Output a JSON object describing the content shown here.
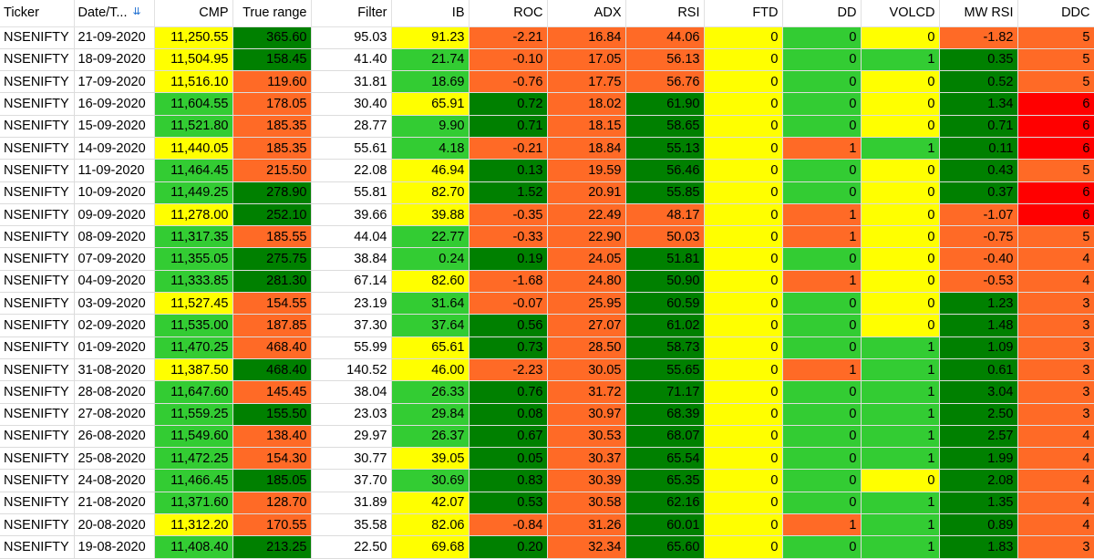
{
  "colors": {
    "yellow": "#ffff00",
    "light_green": "#33cc33",
    "dark_green": "#008000",
    "orange": "#ff6a26",
    "red": "#ff0000",
    "white": "#ffffff",
    "light_gray": "#f3f3f3"
  },
  "columns": [
    {
      "key": "ticker",
      "label": "Ticker",
      "align": "left"
    },
    {
      "key": "date",
      "label": "Date/T...",
      "align": "left",
      "sort_icon": "sort-desc-icon"
    },
    {
      "key": "cmp",
      "label": "CMP"
    },
    {
      "key": "tr",
      "label": "True range"
    },
    {
      "key": "filter",
      "label": "Filter"
    },
    {
      "key": "ib",
      "label": "IB"
    },
    {
      "key": "roc",
      "label": "ROC"
    },
    {
      "key": "adx",
      "label": "ADX"
    },
    {
      "key": "rsi",
      "label": "RSI"
    },
    {
      "key": "ftd",
      "label": "FTD"
    },
    {
      "key": "dd",
      "label": "DD"
    },
    {
      "key": "volcd",
      "label": "VOLCD"
    },
    {
      "key": "mwrsi",
      "label": "MW RSI"
    },
    {
      "key": "ddc",
      "label": "DDC"
    }
  ],
  "rows": [
    [
      "NSENIFTY",
      "21-09-2020",
      "11,250.55",
      "365.60",
      "95.03",
      "91.23",
      "-2.21",
      "16.84",
      "44.06",
      "0",
      "0",
      "0",
      "-1.82",
      "5"
    ],
    [
      "NSENIFTY",
      "18-09-2020",
      "11,504.95",
      "158.45",
      "41.40",
      "21.74",
      "-0.10",
      "17.05",
      "56.13",
      "0",
      "0",
      "1",
      "0.35",
      "5"
    ],
    [
      "NSENIFTY",
      "17-09-2020",
      "11,516.10",
      "119.60",
      "31.81",
      "18.69",
      "-0.76",
      "17.75",
      "56.76",
      "0",
      "0",
      "0",
      "0.52",
      "5"
    ],
    [
      "NSENIFTY",
      "16-09-2020",
      "11,604.55",
      "178.05",
      "30.40",
      "65.91",
      "0.72",
      "18.02",
      "61.90",
      "0",
      "0",
      "0",
      "1.34",
      "6"
    ],
    [
      "NSENIFTY",
      "15-09-2020",
      "11,521.80",
      "185.35",
      "28.77",
      "9.90",
      "0.71",
      "18.15",
      "58.65",
      "0",
      "0",
      "0",
      "0.71",
      "6"
    ],
    [
      "NSENIFTY",
      "14-09-2020",
      "11,440.05",
      "185.35",
      "55.61",
      "4.18",
      "-0.21",
      "18.84",
      "55.13",
      "0",
      "1",
      "1",
      "0.11",
      "6"
    ],
    [
      "NSENIFTY",
      "11-09-2020",
      "11,464.45",
      "215.50",
      "22.08",
      "46.94",
      "0.13",
      "19.59",
      "56.46",
      "0",
      "0",
      "0",
      "0.43",
      "5"
    ],
    [
      "NSENIFTY",
      "10-09-2020",
      "11,449.25",
      "278.90",
      "55.81",
      "82.70",
      "1.52",
      "20.91",
      "55.85",
      "0",
      "0",
      "0",
      "0.37",
      "6"
    ],
    [
      "NSENIFTY",
      "09-09-2020",
      "11,278.00",
      "252.10",
      "39.66",
      "39.88",
      "-0.35",
      "22.49",
      "48.17",
      "0",
      "1",
      "0",
      "-1.07",
      "6"
    ],
    [
      "NSENIFTY",
      "08-09-2020",
      "11,317.35",
      "185.55",
      "44.04",
      "22.77",
      "-0.33",
      "22.90",
      "50.03",
      "0",
      "1",
      "0",
      "-0.75",
      "5"
    ],
    [
      "NSENIFTY",
      "07-09-2020",
      "11,355.05",
      "275.75",
      "38.84",
      "0.24",
      "0.19",
      "24.05",
      "51.81",
      "0",
      "0",
      "0",
      "-0.40",
      "4"
    ],
    [
      "NSENIFTY",
      "04-09-2020",
      "11,333.85",
      "281.30",
      "67.14",
      "82.60",
      "-1.68",
      "24.80",
      "50.90",
      "0",
      "1",
      "0",
      "-0.53",
      "4"
    ],
    [
      "NSENIFTY",
      "03-09-2020",
      "11,527.45",
      "154.55",
      "23.19",
      "31.64",
      "-0.07",
      "25.95",
      "60.59",
      "0",
      "0",
      "0",
      "1.23",
      "3"
    ],
    [
      "NSENIFTY",
      "02-09-2020",
      "11,535.00",
      "187.85",
      "37.30",
      "37.64",
      "0.56",
      "27.07",
      "61.02",
      "0",
      "0",
      "0",
      "1.48",
      "3"
    ],
    [
      "NSENIFTY",
      "01-09-2020",
      "11,470.25",
      "468.40",
      "55.99",
      "65.61",
      "0.73",
      "28.50",
      "58.73",
      "0",
      "0",
      "1",
      "1.09",
      "3"
    ],
    [
      "NSENIFTY",
      "31-08-2020",
      "11,387.50",
      "468.40",
      "140.52",
      "46.00",
      "-2.23",
      "30.05",
      "55.65",
      "0",
      "1",
      "1",
      "0.61",
      "3"
    ],
    [
      "NSENIFTY",
      "28-08-2020",
      "11,647.60",
      "145.45",
      "38.04",
      "26.33",
      "0.76",
      "31.72",
      "71.17",
      "0",
      "0",
      "1",
      "3.04",
      "3"
    ],
    [
      "NSENIFTY",
      "27-08-2020",
      "11,559.25",
      "155.50",
      "23.03",
      "29.84",
      "0.08",
      "30.97",
      "68.39",
      "0",
      "0",
      "1",
      "2.50",
      "3"
    ],
    [
      "NSENIFTY",
      "26-08-2020",
      "11,549.60",
      "138.40",
      "29.97",
      "26.37",
      "0.67",
      "30.53",
      "68.07",
      "0",
      "0",
      "1",
      "2.57",
      "4"
    ],
    [
      "NSENIFTY",
      "25-08-2020",
      "11,472.25",
      "154.30",
      "30.77",
      "39.05",
      "0.05",
      "30.37",
      "65.54",
      "0",
      "0",
      "1",
      "1.99",
      "4"
    ],
    [
      "NSENIFTY",
      "24-08-2020",
      "11,466.45",
      "185.05",
      "37.70",
      "30.69",
      "0.83",
      "30.39",
      "65.35",
      "0",
      "0",
      "0",
      "2.08",
      "4"
    ],
    [
      "NSENIFTY",
      "21-08-2020",
      "11,371.60",
      "128.70",
      "31.89",
      "42.07",
      "0.53",
      "30.58",
      "62.16",
      "0",
      "0",
      "1",
      "1.35",
      "4"
    ],
    [
      "NSENIFTY",
      "20-08-2020",
      "11,312.20",
      "170.55",
      "35.58",
      "82.06",
      "-0.84",
      "31.26",
      "60.01",
      "0",
      "1",
      "1",
      "0.89",
      "4"
    ],
    [
      "NSENIFTY",
      "19-08-2020",
      "11,408.40",
      "213.25",
      "22.50",
      "69.68",
      "0.20",
      "32.34",
      "65.60",
      "0",
      "0",
      "1",
      "1.83",
      "3"
    ]
  ],
  "row_colors": [
    [
      "w",
      "w",
      "y",
      "d",
      "w",
      "y",
      "o",
      "o",
      "o",
      "y",
      "l",
      "y",
      "o",
      "o"
    ],
    [
      "w",
      "w",
      "y",
      "d",
      "w",
      "l",
      "o",
      "o",
      "o",
      "y",
      "l",
      "l",
      "d",
      "o"
    ],
    [
      "w",
      "w",
      "y",
      "o",
      "w",
      "l",
      "o",
      "o",
      "o",
      "y",
      "l",
      "y",
      "d",
      "o"
    ],
    [
      "w",
      "w",
      "l",
      "o",
      "w",
      "y",
      "d",
      "o",
      "d",
      "y",
      "l",
      "y",
      "d",
      "r"
    ],
    [
      "w",
      "w",
      "l",
      "o",
      "w",
      "l",
      "d",
      "o",
      "d",
      "y",
      "l",
      "y",
      "d",
      "r"
    ],
    [
      "w",
      "w",
      "y",
      "o",
      "w",
      "l",
      "o",
      "o",
      "d",
      "y",
      "o",
      "l",
      "d",
      "r"
    ],
    [
      "w",
      "w",
      "l",
      "o",
      "w",
      "y",
      "d",
      "o",
      "d",
      "y",
      "l",
      "y",
      "d",
      "o"
    ],
    [
      "w",
      "w",
      "l",
      "d",
      "w",
      "y",
      "d",
      "o",
      "d",
      "y",
      "l",
      "y",
      "d",
      "r"
    ],
    [
      "w",
      "w",
      "y",
      "d",
      "w",
      "y",
      "o",
      "o",
      "o",
      "y",
      "o",
      "y",
      "o",
      "r"
    ],
    [
      "w",
      "w",
      "l",
      "o",
      "w",
      "l",
      "o",
      "o",
      "o",
      "y",
      "o",
      "y",
      "o",
      "o"
    ],
    [
      "w",
      "w",
      "l",
      "d",
      "w",
      "l",
      "d",
      "o",
      "d",
      "y",
      "l",
      "y",
      "o",
      "o"
    ],
    [
      "w",
      "w",
      "l",
      "d",
      "w",
      "y",
      "o",
      "o",
      "d",
      "y",
      "o",
      "y",
      "o",
      "o"
    ],
    [
      "w",
      "w",
      "y",
      "o",
      "w",
      "l",
      "o",
      "o",
      "d",
      "y",
      "l",
      "y",
      "d",
      "o"
    ],
    [
      "w",
      "w",
      "l",
      "o",
      "w",
      "l",
      "d",
      "o",
      "d",
      "y",
      "l",
      "y",
      "d",
      "o"
    ],
    [
      "w",
      "w",
      "l",
      "o",
      "w",
      "y",
      "d",
      "o",
      "d",
      "y",
      "l",
      "l",
      "d",
      "o"
    ],
    [
      "w",
      "w",
      "y",
      "d",
      "w",
      "y",
      "o",
      "o",
      "d",
      "y",
      "o",
      "l",
      "d",
      "o"
    ],
    [
      "w",
      "w",
      "l",
      "o",
      "w",
      "l",
      "d",
      "o",
      "d",
      "y",
      "l",
      "l",
      "d",
      "o"
    ],
    [
      "w",
      "w",
      "l",
      "d",
      "w",
      "l",
      "d",
      "o",
      "d",
      "y",
      "l",
      "l",
      "d",
      "o"
    ],
    [
      "w",
      "w",
      "l",
      "o",
      "w",
      "l",
      "d",
      "o",
      "d",
      "y",
      "l",
      "l",
      "d",
      "o"
    ],
    [
      "w",
      "w",
      "l",
      "o",
      "w",
      "y",
      "d",
      "o",
      "d",
      "y",
      "l",
      "l",
      "d",
      "o"
    ],
    [
      "w",
      "w",
      "l",
      "d",
      "w",
      "l",
      "d",
      "o",
      "d",
      "y",
      "l",
      "y",
      "d",
      "o"
    ],
    [
      "w",
      "w",
      "l",
      "o",
      "w",
      "y",
      "d",
      "o",
      "d",
      "y",
      "l",
      "l",
      "d",
      "o"
    ],
    [
      "w",
      "w",
      "y",
      "o",
      "w",
      "y",
      "o",
      "o",
      "d",
      "y",
      "o",
      "l",
      "d",
      "o"
    ],
    [
      "w",
      "w",
      "l",
      "d",
      "w",
      "y",
      "d",
      "o",
      "d",
      "y",
      "l",
      "l",
      "d",
      "o"
    ]
  ]
}
